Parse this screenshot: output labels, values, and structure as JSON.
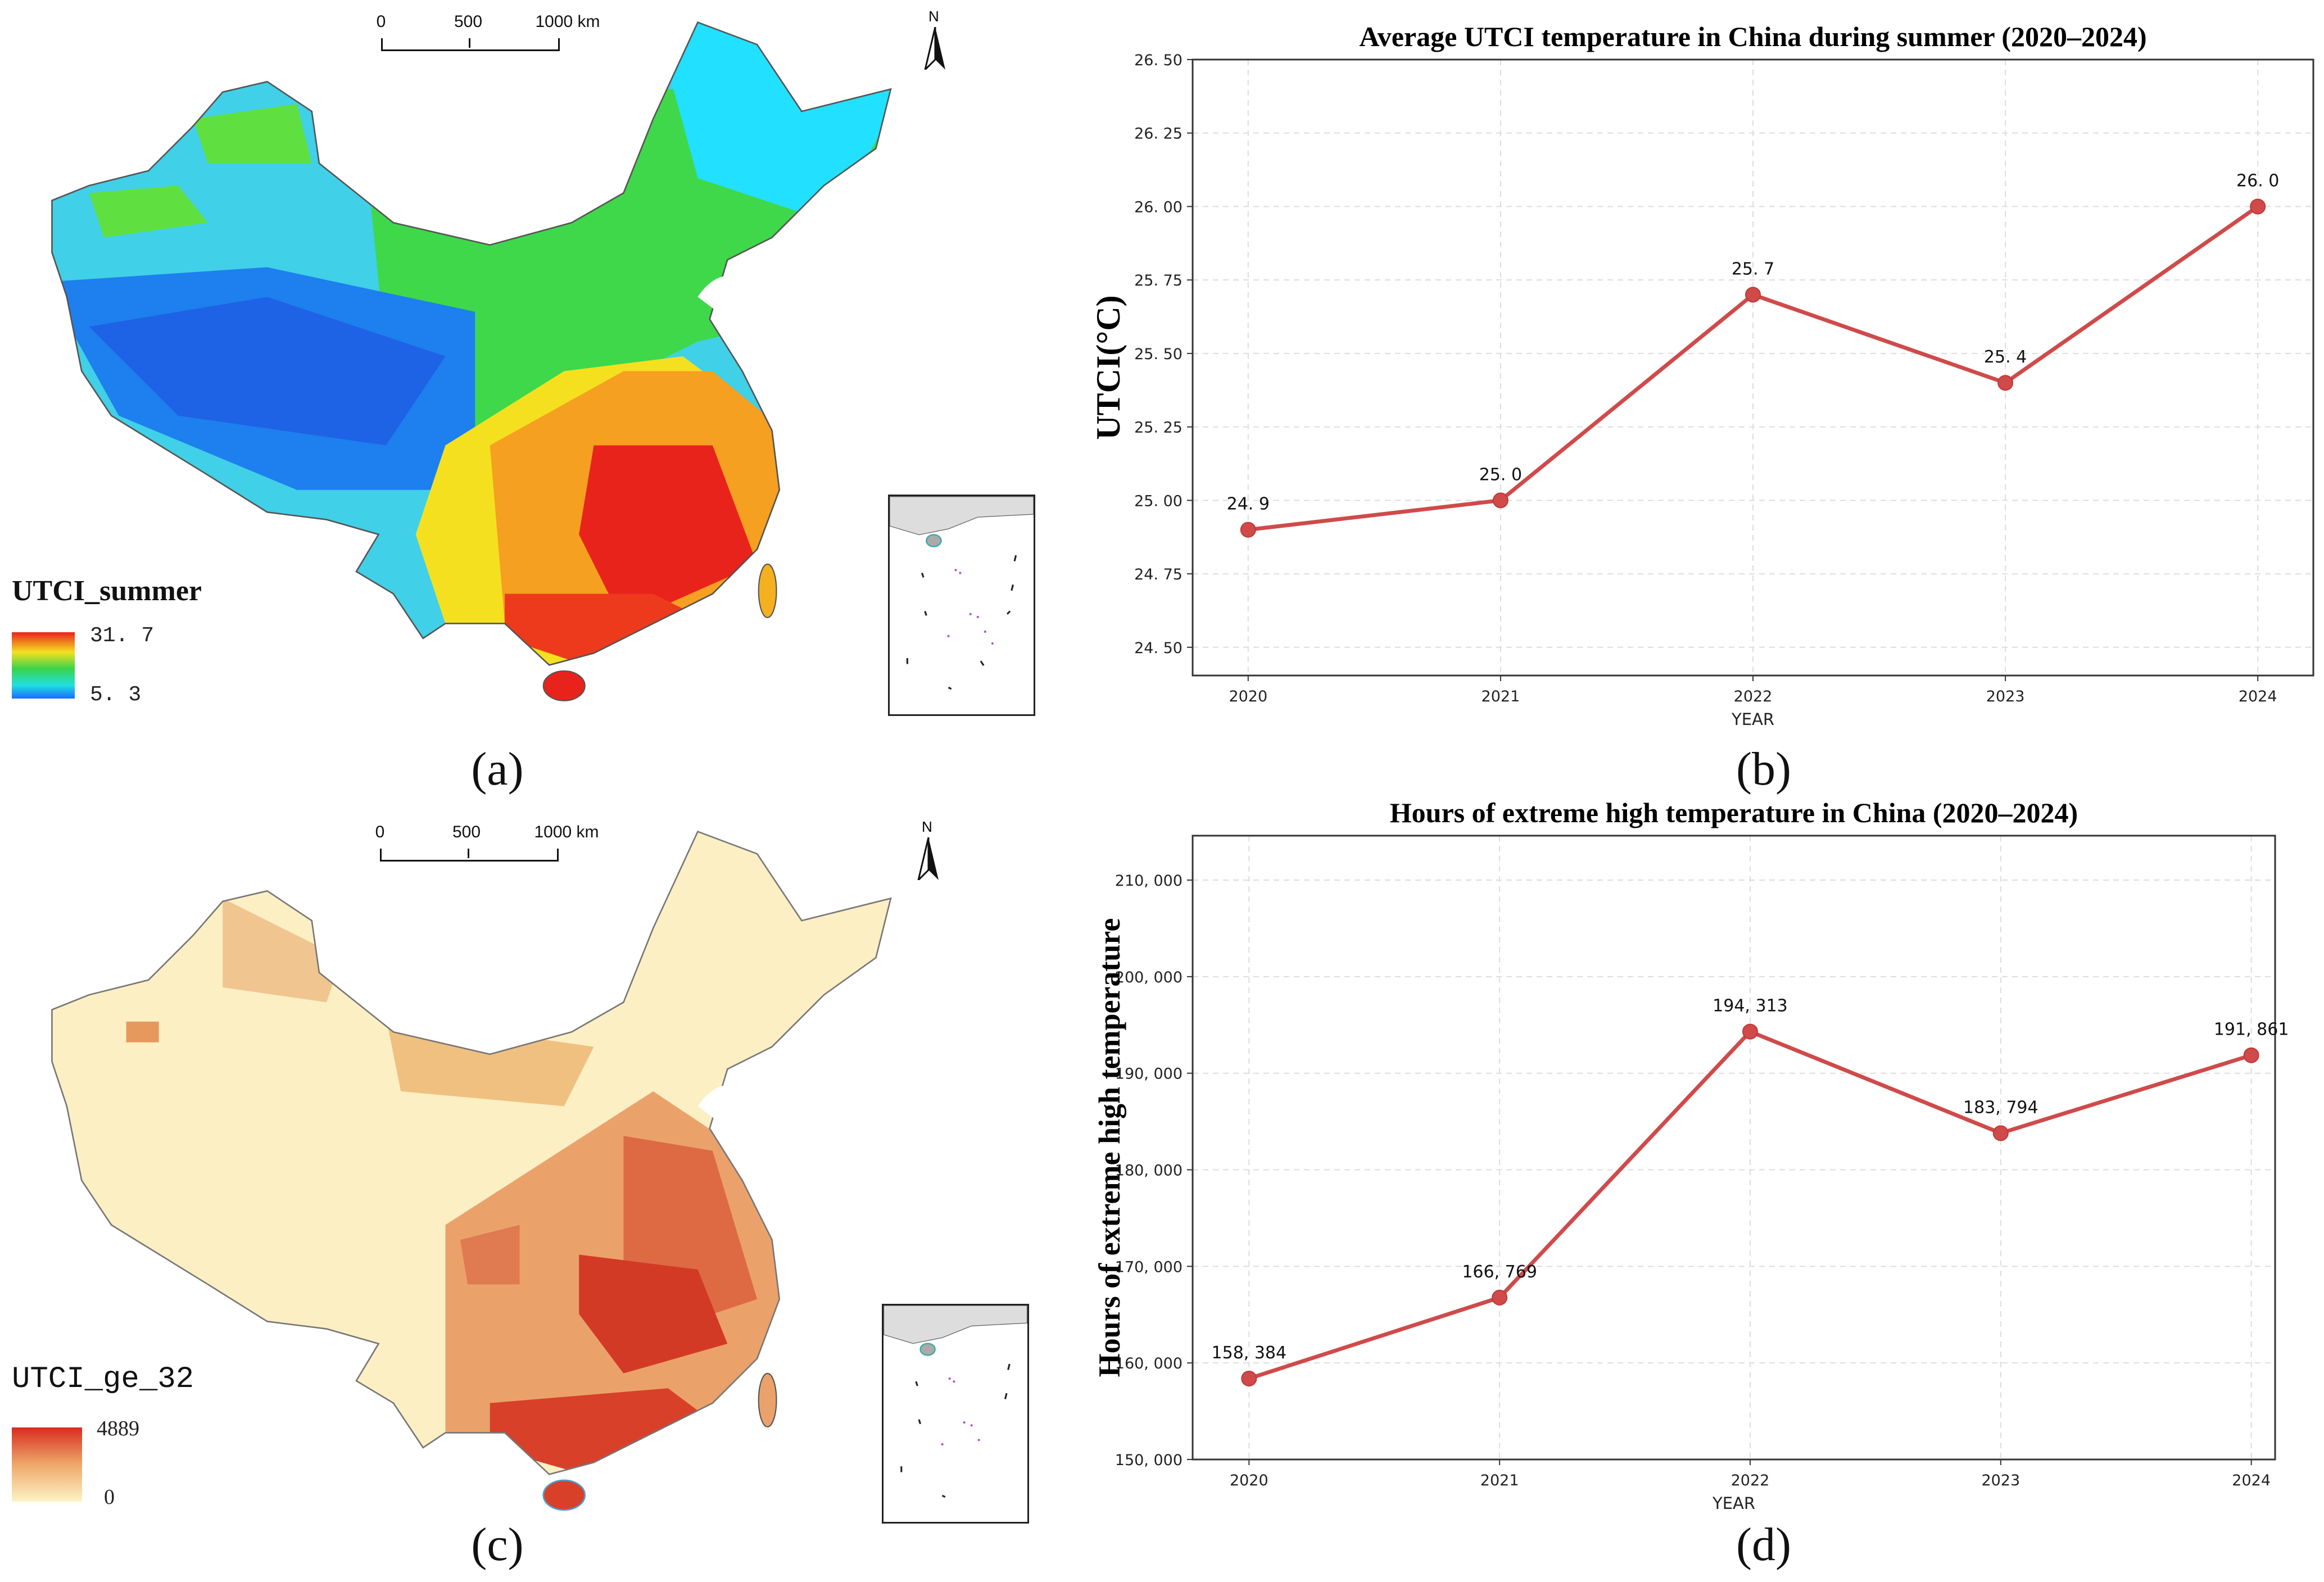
{
  "panels": {
    "a": {
      "label": "(a)",
      "legend_title": "UTCI_summer",
      "legend_max": "31. 7",
      "legend_min": "5. 3",
      "scale_labels": [
        "0",
        "500",
        "1000 km"
      ],
      "north": "N",
      "colors": {
        "low": "#1a8cff",
        "mid": "#3ad44a",
        "high": "#e8231c"
      }
    },
    "b": {
      "label": "(b)"
    },
    "c": {
      "label": "(c)",
      "legend_title": "UTCI_ge_32",
      "legend_max": "4889",
      "legend_min": "0",
      "scale_labels": [
        "0",
        "500",
        "1000 km"
      ],
      "north": "N",
      "colors": {
        "low": "#fdf3c4",
        "mid": "#eea86a",
        "high": "#d92b1f"
      }
    },
    "d": {
      "label": "(d)"
    }
  },
  "chart_data": [
    {
      "type": "line",
      "title": "Average UTCI temperature in China during summer (2020–2024)",
      "xlabel": "YEAR",
      "ylabel": "UTCI(°C)",
      "x": [
        2020,
        2021,
        2022,
        2023,
        2024
      ],
      "values": [
        24.9,
        25.0,
        25.7,
        25.4,
        26.0
      ],
      "data_labels": [
        "24. 9",
        "25. 0",
        "25. 7",
        "25. 4",
        "26. 0"
      ],
      "yticks": [
        24.5,
        24.75,
        25.0,
        25.25,
        25.5,
        25.75,
        26.0,
        26.25,
        26.5
      ],
      "ytick_labels": [
        "24. 50",
        "24. 75",
        "25. 00",
        "25. 25",
        "25. 50",
        "25. 75",
        "26. 00",
        "26. 25",
        "26. 50"
      ],
      "xtick_labels": [
        "2020",
        "2021",
        "2022",
        "2023",
        "2024"
      ],
      "ylim": [
        24.404,
        26.5
      ],
      "xlim": [
        2019.78,
        2024.22
      ],
      "grid": true,
      "color": "#d04a4a"
    },
    {
      "type": "line",
      "title": "Hours of extreme high temperature in China (2020–2024)",
      "xlabel": "YEAR",
      "ylabel": "Hours of extreme high temperature",
      "x": [
        2020,
        2021,
        2022,
        2023,
        2024
      ],
      "values": [
        158384,
        166769,
        194313,
        183794,
        191861
      ],
      "data_labels": [
        "158, 384",
        "166, 769",
        "194, 313",
        "183, 794",
        "191, 861"
      ],
      "yticks": [
        150000,
        160000,
        170000,
        180000,
        190000,
        200000,
        210000
      ],
      "ytick_labels": [
        "150, 000",
        "160, 000",
        "170, 000",
        "180, 000",
        "190, 000",
        "200, 000",
        "210, 000"
      ],
      "xtick_labels": [
        "2020",
        "2021",
        "2022",
        "2023",
        "2024"
      ],
      "ylim": [
        150000,
        214600
      ],
      "xlim": [
        2019.775,
        2024.095
      ],
      "grid": true,
      "color": "#d04a4a"
    }
  ]
}
